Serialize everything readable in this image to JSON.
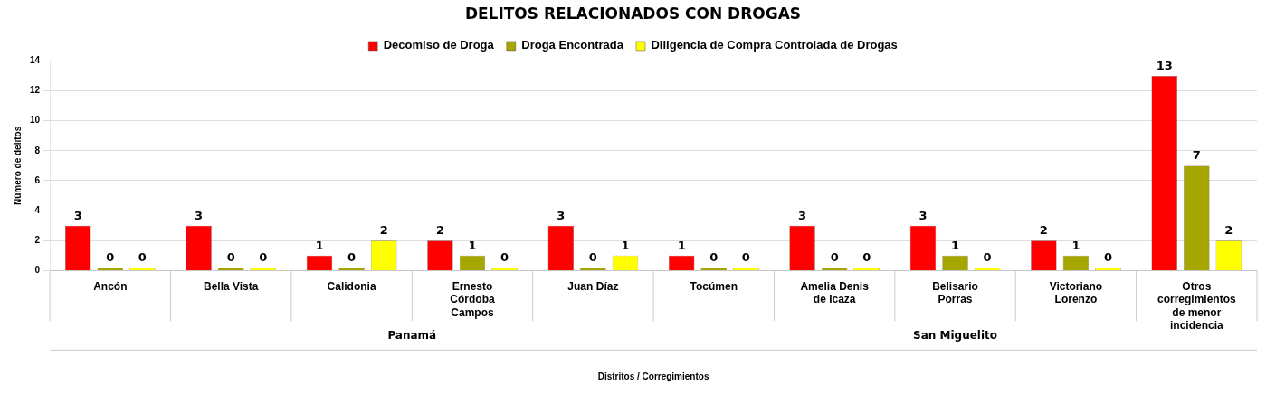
{
  "chart_data": {
    "type": "bar",
    "title": "DELITOS RELACIONADOS CON DROGAS",
    "xlabel": "Distritos / Corregimientos",
    "ylabel": "Número de delitos",
    "categories": [
      "Ancón",
      "Bella Vista",
      "Calidonia",
      "Ernesto Córdoba Campos",
      "Juan Díaz",
      "Tocúmen",
      "Amelia Denis de Icaza",
      "Belisario Porras",
      "Victoriano Lorenzo",
      "Otros corregimientos de menor incidencia"
    ],
    "series": [
      {
        "name": "Decomiso de Droga",
        "color": "#ff0000",
        "values": [
          3,
          3,
          1,
          2,
          3,
          1,
          3,
          3,
          2,
          13
        ]
      },
      {
        "name": "Droga Encontrada",
        "color": "#a6a600",
        "values": [
          0,
          0,
          0,
          1,
          0,
          0,
          0,
          1,
          1,
          7
        ]
      },
      {
        "name": "Diligencia de Compra Controlada de Drogas",
        "color": "#ffff00",
        "values": [
          0,
          0,
          2,
          0,
          1,
          0,
          0,
          0,
          0,
          2
        ]
      }
    ],
    "annotations": [
      "Panamá",
      "San Miguelito"
    ],
    "ylim": [
      0,
      14
    ],
    "yticks": [
      0,
      2,
      4,
      6,
      8,
      10,
      12,
      14
    ],
    "grid": "y",
    "legend": "top",
    "data_labels": true
  }
}
